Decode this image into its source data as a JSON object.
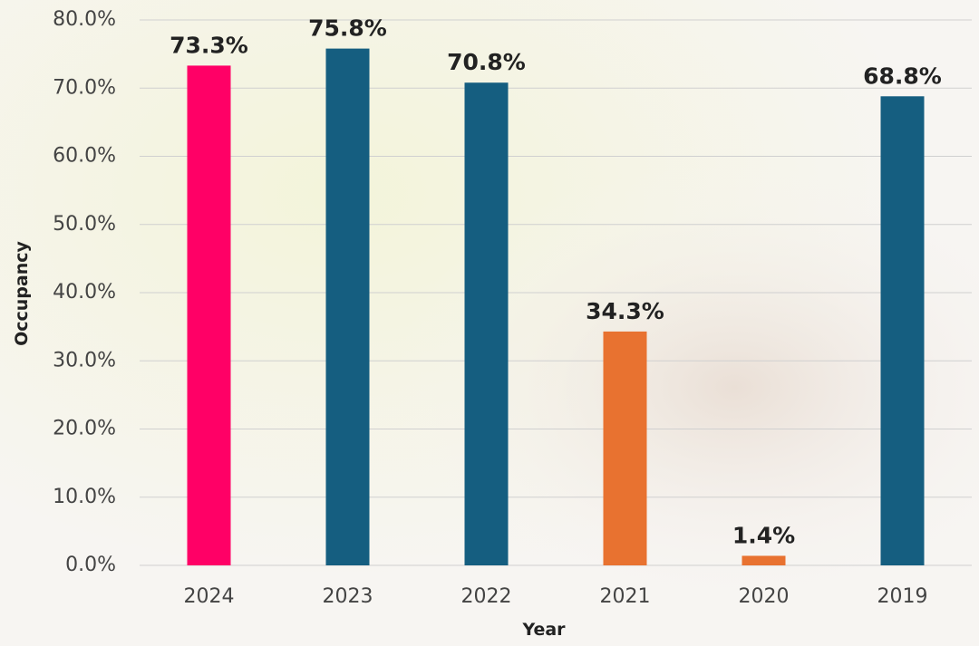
{
  "chart_data": {
    "type": "bar",
    "x_label": "Year",
    "y_label": "Occupancy",
    "categories": [
      "2024",
      "2023",
      "2022",
      "2021",
      "2020",
      "2019"
    ],
    "values": [
      73.3,
      75.8,
      70.8,
      34.3,
      1.4,
      68.8
    ],
    "value_labels": [
      "73.3%",
      "75.8%",
      "70.8%",
      "34.3%",
      "1.4%",
      "68.8%"
    ],
    "colors": [
      "#ff0066",
      "#155e80",
      "#155e80",
      "#e87230",
      "#e87230",
      "#155e80"
    ],
    "ylim": [
      0,
      80
    ],
    "yticks": [
      {
        "value": 0,
        "label": "0.0%"
      },
      {
        "value": 10,
        "label": "10.0%"
      },
      {
        "value": 20,
        "label": "20.0%"
      },
      {
        "value": 30,
        "label": "30.0%"
      },
      {
        "value": 40,
        "label": "40.0%"
      },
      {
        "value": 50,
        "label": "50.0%"
      },
      {
        "value": 60,
        "label": "60.0%"
      },
      {
        "value": 70,
        "label": "70.0%"
      },
      {
        "value": 80,
        "label": "80.0%"
      }
    ],
    "grid": true
  }
}
